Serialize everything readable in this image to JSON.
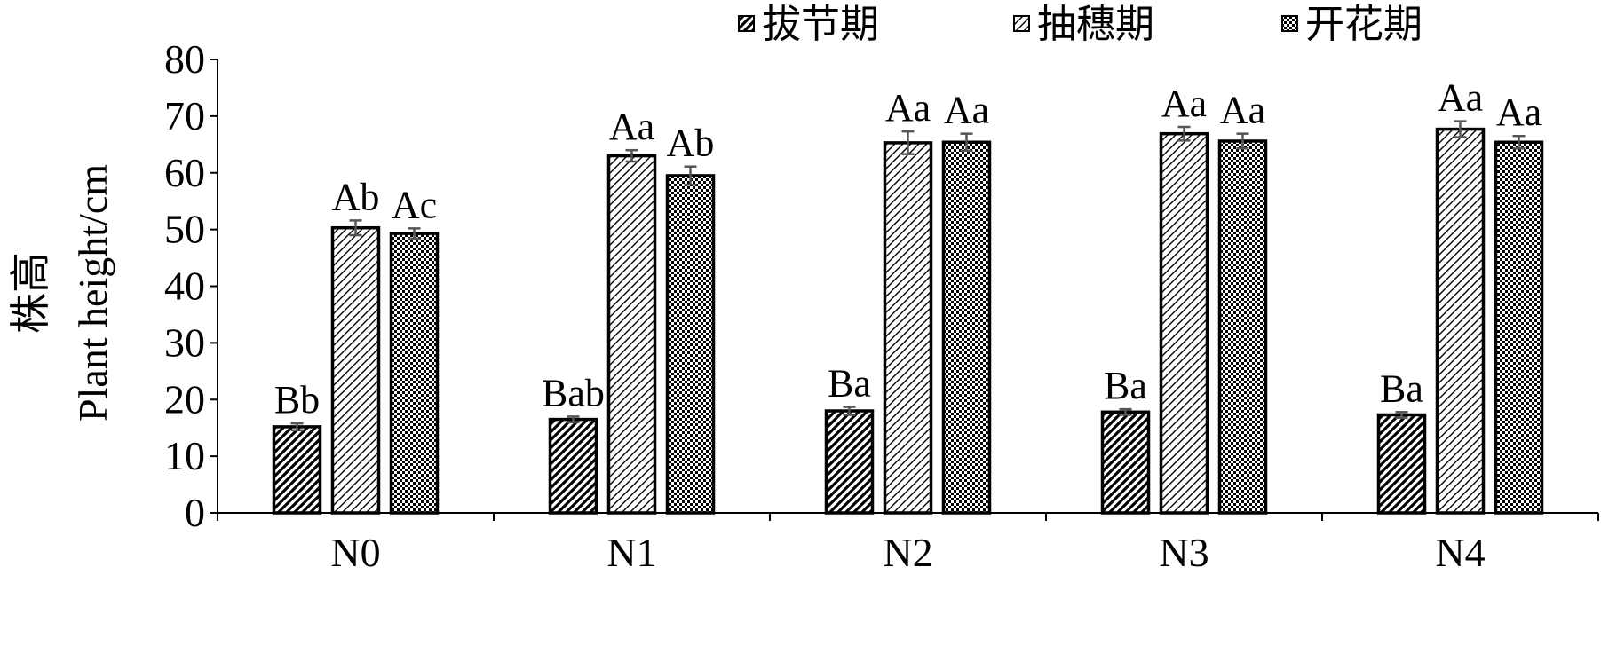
{
  "chart_data": {
    "type": "bar",
    "categories": [
      "N0",
      "N1",
      "N2",
      "N3",
      "N4"
    ],
    "ylim": [
      0,
      80
    ],
    "yticks": [
      0,
      10,
      20,
      30,
      40,
      50,
      60,
      70,
      80
    ],
    "ylabel": "株高",
    "ylabel_en": "Plant height/cm",
    "xlabel": "",
    "grid": false,
    "legend_position": "top-right",
    "series": [
      {
        "name": "拔节期",
        "pattern": "dense-diagonal",
        "values": [
          15.2,
          16.5,
          18.0,
          17.8,
          17.3
        ],
        "errors": [
          0.6,
          0.5,
          0.7,
          0.5,
          0.5
        ],
        "labels": [
          "Bb",
          "Bab",
          "Ba",
          "Ba",
          "Ba"
        ]
      },
      {
        "name": "抽穗期",
        "pattern": "light-diagonal",
        "values": [
          50.3,
          63.0,
          65.3,
          66.9,
          67.7
        ],
        "errors": [
          1.3,
          1.0,
          2.0,
          1.2,
          1.4
        ],
        "labels": [
          "Ab",
          "Aa",
          "Aa",
          "Aa",
          "Aa"
        ]
      },
      {
        "name": "开花期",
        "pattern": "checker",
        "values": [
          49.3,
          59.5,
          65.4,
          65.6,
          65.4
        ],
        "errors": [
          0.9,
          1.6,
          1.5,
          1.3,
          1.1
        ],
        "labels": [
          "Ac",
          "Ab",
          "Aa",
          "Aa",
          "Aa"
        ]
      }
    ]
  }
}
